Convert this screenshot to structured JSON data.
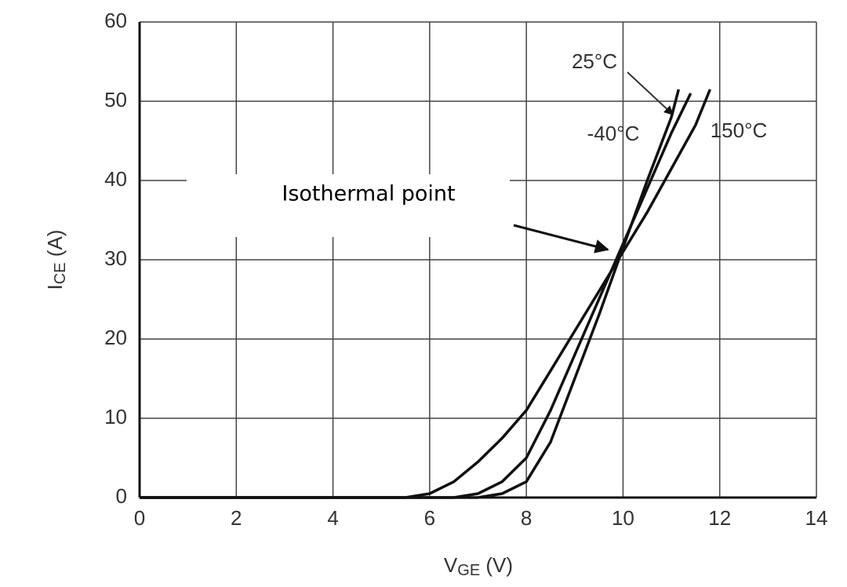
{
  "chart_data": {
    "type": "line",
    "xlabel_parts": [
      "V",
      "GE",
      " (V)"
    ],
    "ylabel_parts": [
      "I",
      "CE",
      " (A)"
    ],
    "annotation": "Isothermal point",
    "xlim": [
      0,
      14
    ],
    "xticks": [
      0,
      2,
      4,
      6,
      8,
      10,
      12,
      14
    ],
    "ylim": [
      0,
      60
    ],
    "yticks": [
      0,
      10,
      20,
      30,
      40,
      50,
      60
    ],
    "grid": true,
    "series": [
      {
        "name": "150°C",
        "color": "#111111",
        "x": [
          0,
          5.5,
          6,
          6.5,
          7,
          7.5,
          8,
          8.5,
          9,
          9.5,
          10,
          10.5,
          11,
          11.5,
          11.8
        ],
        "values": [
          0,
          0,
          0.5,
          2,
          4.5,
          7.5,
          11,
          16,
          21,
          26,
          31,
          36,
          41.5,
          47,
          51.5
        ]
      },
      {
        "name": "25°C",
        "color": "#111111",
        "x": [
          0,
          6.5,
          7,
          7.5,
          8,
          8.5,
          9,
          9.5,
          10,
          10.5,
          11,
          11.4
        ],
        "values": [
          0,
          0,
          0.5,
          2,
          5,
          11,
          18,
          25,
          32,
          39,
          46,
          51
        ]
      },
      {
        "name": "-40°C",
        "color": "#111111",
        "x": [
          0,
          7,
          7.5,
          8,
          8.5,
          9,
          9.5,
          10,
          10.5,
          11,
          11.15
        ],
        "values": [
          0,
          0,
          0.5,
          2,
          7,
          15,
          23,
          31.5,
          40,
          48,
          51.5
        ]
      }
    ]
  }
}
